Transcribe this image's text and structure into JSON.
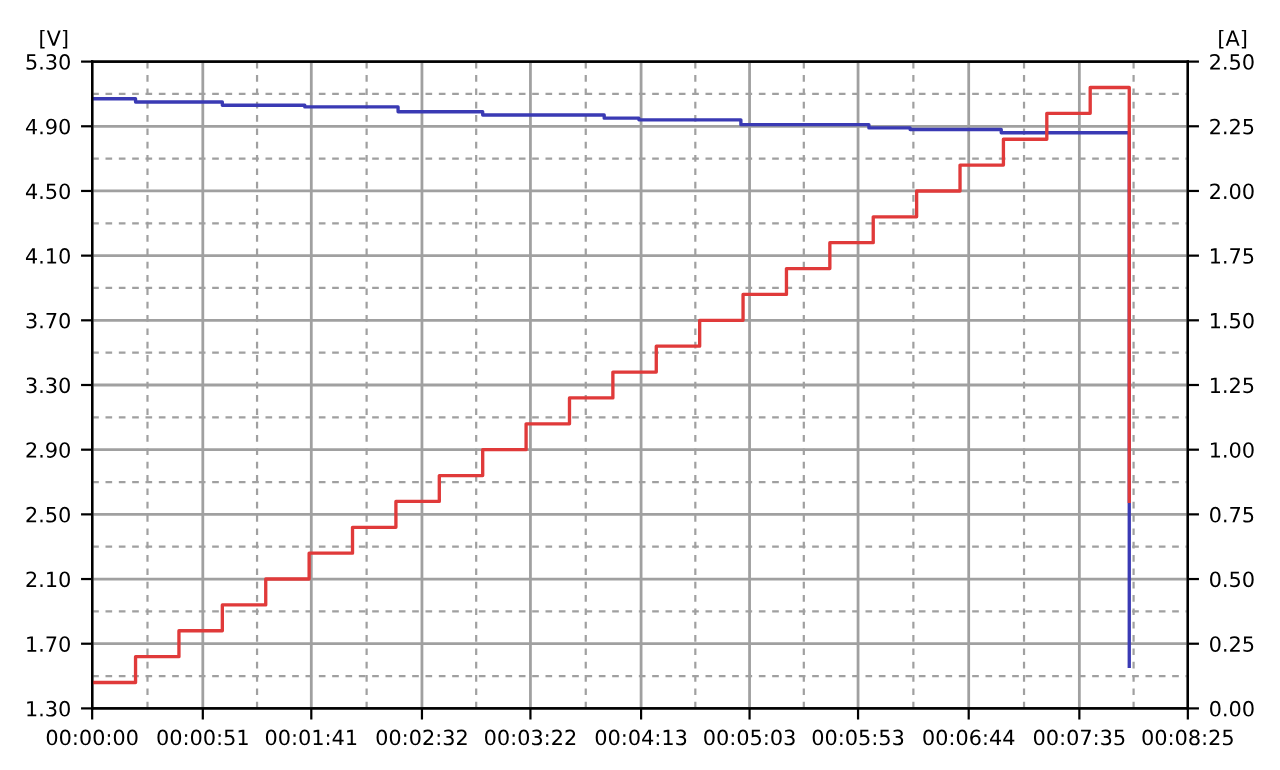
{
  "chart_data": {
    "type": "step",
    "ylabel": "[V]",
    "y2label": "[A]",
    "xlim": [
      0,
      505
    ],
    "xticks": [
      {
        "value": 0,
        "label": "00:00:00"
      },
      {
        "value": 51,
        "label": "00:00:51"
      },
      {
        "value": 101,
        "label": "00:01:41"
      },
      {
        "value": 152,
        "label": "00:02:32"
      },
      {
        "value": 202,
        "label": "00:03:22"
      },
      {
        "value": 253,
        "label": "00:04:13"
      },
      {
        "value": 303,
        "label": "00:05:03"
      },
      {
        "value": 353,
        "label": "00:05:53"
      },
      {
        "value": 404,
        "label": "00:06:44"
      },
      {
        "value": 455,
        "label": "00:07:35"
      },
      {
        "value": 505,
        "label": "00:08:25"
      }
    ],
    "ylim": [
      1.3,
      5.3
    ],
    "yticks": [
      {
        "value": 1.3,
        "label": "1.30"
      },
      {
        "value": 1.7,
        "label": "1.70"
      },
      {
        "value": 2.1,
        "label": "2.10"
      },
      {
        "value": 2.5,
        "label": "2.50"
      },
      {
        "value": 2.9,
        "label": "2.90"
      },
      {
        "value": 3.3,
        "label": "3.30"
      },
      {
        "value": 3.7,
        "label": "3.70"
      },
      {
        "value": 4.1,
        "label": "4.10"
      },
      {
        "value": 4.5,
        "label": "4.50"
      },
      {
        "value": 4.9,
        "label": "4.90"
      },
      {
        "value": 5.3,
        "label": "5.30"
      }
    ],
    "y2lim": [
      0,
      2.5
    ],
    "y2ticks": [
      {
        "value": 0,
        "label": "0.00"
      },
      {
        "value": 0.25,
        "label": "0.25"
      },
      {
        "value": 0.5,
        "label": "0.50"
      },
      {
        "value": 0.75,
        "label": "0.75"
      },
      {
        "value": 1.0,
        "label": "1.00"
      },
      {
        "value": 1.25,
        "label": "1.25"
      },
      {
        "value": 1.5,
        "label": "1.50"
      },
      {
        "value": 1.75,
        "label": "1.75"
      },
      {
        "value": 2.0,
        "label": "2.00"
      },
      {
        "value": 2.25,
        "label": "2.25"
      },
      {
        "value": 2.5,
        "label": "2.50"
      }
    ],
    "grid": true,
    "series": [
      {
        "color": "#3a3ab4",
        "x": [
          0,
          20,
          60,
          98,
          141,
          180,
          236,
          252,
          299,
          358,
          377,
          419,
          478,
          478
        ],
        "values": [
          5.07,
          5.05,
          5.03,
          5.02,
          4.99,
          4.97,
          4.95,
          4.94,
          4.91,
          4.89,
          4.88,
          4.86,
          4.86,
          1.56
        ]
      },
      {
        "color": "#e03a3a",
        "axis": "y2",
        "x": [
          0,
          20,
          40,
          60,
          80,
          100,
          120,
          140,
          160,
          180,
          200,
          220,
          240,
          260,
          280,
          300,
          320,
          340,
          360,
          380,
          400,
          420,
          440,
          460,
          478,
          478
        ],
        "values": [
          0.1,
          0.2,
          0.3,
          0.4,
          0.5,
          0.6,
          0.7,
          0.8,
          0.9,
          1.0,
          1.1,
          1.2,
          1.3,
          1.4,
          1.5,
          1.6,
          1.7,
          1.8,
          1.9,
          2.0,
          2.1,
          2.2,
          2.3,
          2.4,
          2.4,
          0.8
        ]
      }
    ]
  }
}
